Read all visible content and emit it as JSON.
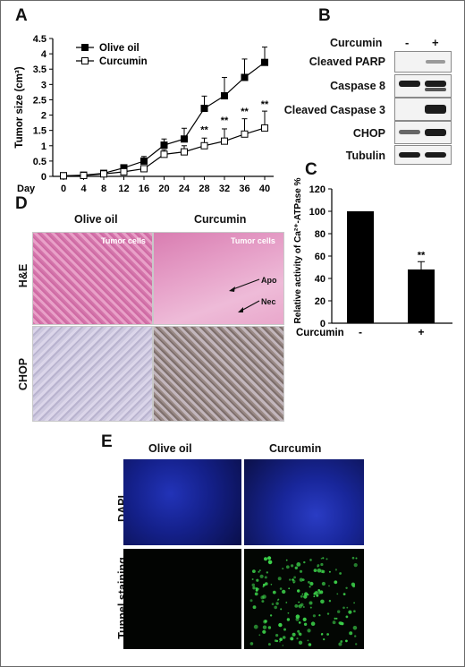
{
  "panels": {
    "a": {
      "label": "A"
    },
    "b": {
      "label": "B"
    },
    "c": {
      "label": "C"
    },
    "d": {
      "label": "D"
    },
    "e": {
      "label": "E"
    }
  },
  "chart_data": [
    {
      "type": "line",
      "panel": "A",
      "ylabel": "Tumor size (cm³)",
      "xlabel": "Day",
      "x": [
        0,
        4,
        8,
        12,
        16,
        20,
        24,
        28,
        32,
        36,
        40
      ],
      "x_tick_labels": [
        "0",
        "4",
        "8",
        "12",
        "16",
        "20",
        "24",
        "28",
        "32",
        "36",
        "40"
      ],
      "ylim": [
        0,
        4.5
      ],
      "y_ticks": [
        0,
        0.5,
        1,
        1.5,
        2,
        2.5,
        3,
        3.5,
        4,
        4.5
      ],
      "y_tick_labels": [
        "0",
        "0.5",
        "1",
        "1.5",
        "2",
        "2.5",
        "3",
        "3.5",
        "4",
        "4.5"
      ],
      "legend_position": "top-left",
      "series": [
        {
          "name": "Olive oil",
          "marker": "filled-square",
          "values": [
            0.02,
            0.04,
            0.1,
            0.28,
            0.5,
            1.02,
            1.22,
            2.22,
            2.63,
            3.23,
            3.72
          ],
          "errors": [
            0.02,
            0.03,
            0.05,
            0.1,
            0.15,
            0.2,
            0.35,
            0.4,
            0.6,
            0.6,
            0.5
          ]
        },
        {
          "name": "Curcumin",
          "marker": "open-square",
          "values": [
            0.02,
            0.03,
            0.08,
            0.15,
            0.25,
            0.72,
            0.8,
            1.0,
            1.15,
            1.38,
            1.58
          ],
          "errors": [
            0.02,
            0.02,
            0.04,
            0.08,
            0.1,
            0.15,
            0.2,
            0.25,
            0.4,
            0.5,
            0.55
          ]
        }
      ],
      "annotations": [
        {
          "x": 28,
          "y": 1.42,
          "text": "**"
        },
        {
          "x": 32,
          "y": 1.72,
          "text": "**"
        },
        {
          "x": 36,
          "y": 2.02,
          "text": "**"
        },
        {
          "x": 40,
          "y": 2.25,
          "text": "**"
        }
      ]
    },
    {
      "type": "bar",
      "panel": "C",
      "ylabel": "Relative activity of Ca²⁺-ATPase %",
      "xlabel": "Curcumin",
      "categories": [
        "-",
        "+"
      ],
      "values": [
        100,
        48
      ],
      "errors": [
        0,
        7
      ],
      "ylim": [
        0,
        120
      ],
      "y_ticks": [
        0,
        20,
        40,
        60,
        80,
        100,
        120
      ],
      "y_tick_labels": [
        "0",
        "20",
        "40",
        "60",
        "80",
        "100",
        "120"
      ],
      "annotations": [
        {
          "category": "+",
          "text": "**"
        }
      ]
    }
  ],
  "western_blot": {
    "treatment_label": "Curcumin",
    "lanes": [
      "-",
      "+"
    ],
    "rows": [
      {
        "label": "Cleaved PARP"
      },
      {
        "label": "Caspase 8"
      },
      {
        "label": "Cleaved Caspase 3"
      },
      {
        "label": "CHOP"
      },
      {
        "label": "Tubulin"
      }
    ]
  },
  "histology": {
    "columns": [
      "Olive oil",
      "Curcumin"
    ],
    "rows": [
      "H&E",
      "CHOP"
    ],
    "annotations": {
      "tumor_cells_left": "Tumor cells",
      "tumor_cells_right": "Tumor cells",
      "apo": "Apo",
      "nec": "Nec"
    }
  },
  "staining": {
    "columns": [
      "Olive oil",
      "Curcumin"
    ],
    "rows": [
      "DAPI",
      "Tunnel staining"
    ]
  },
  "colors": {
    "he_stain": "#e08ab8",
    "chop_stain": "#c7c2dc",
    "dapi": "#1a2aa0",
    "tunnel_green": "#3cd24a",
    "bar": "#000000"
  }
}
